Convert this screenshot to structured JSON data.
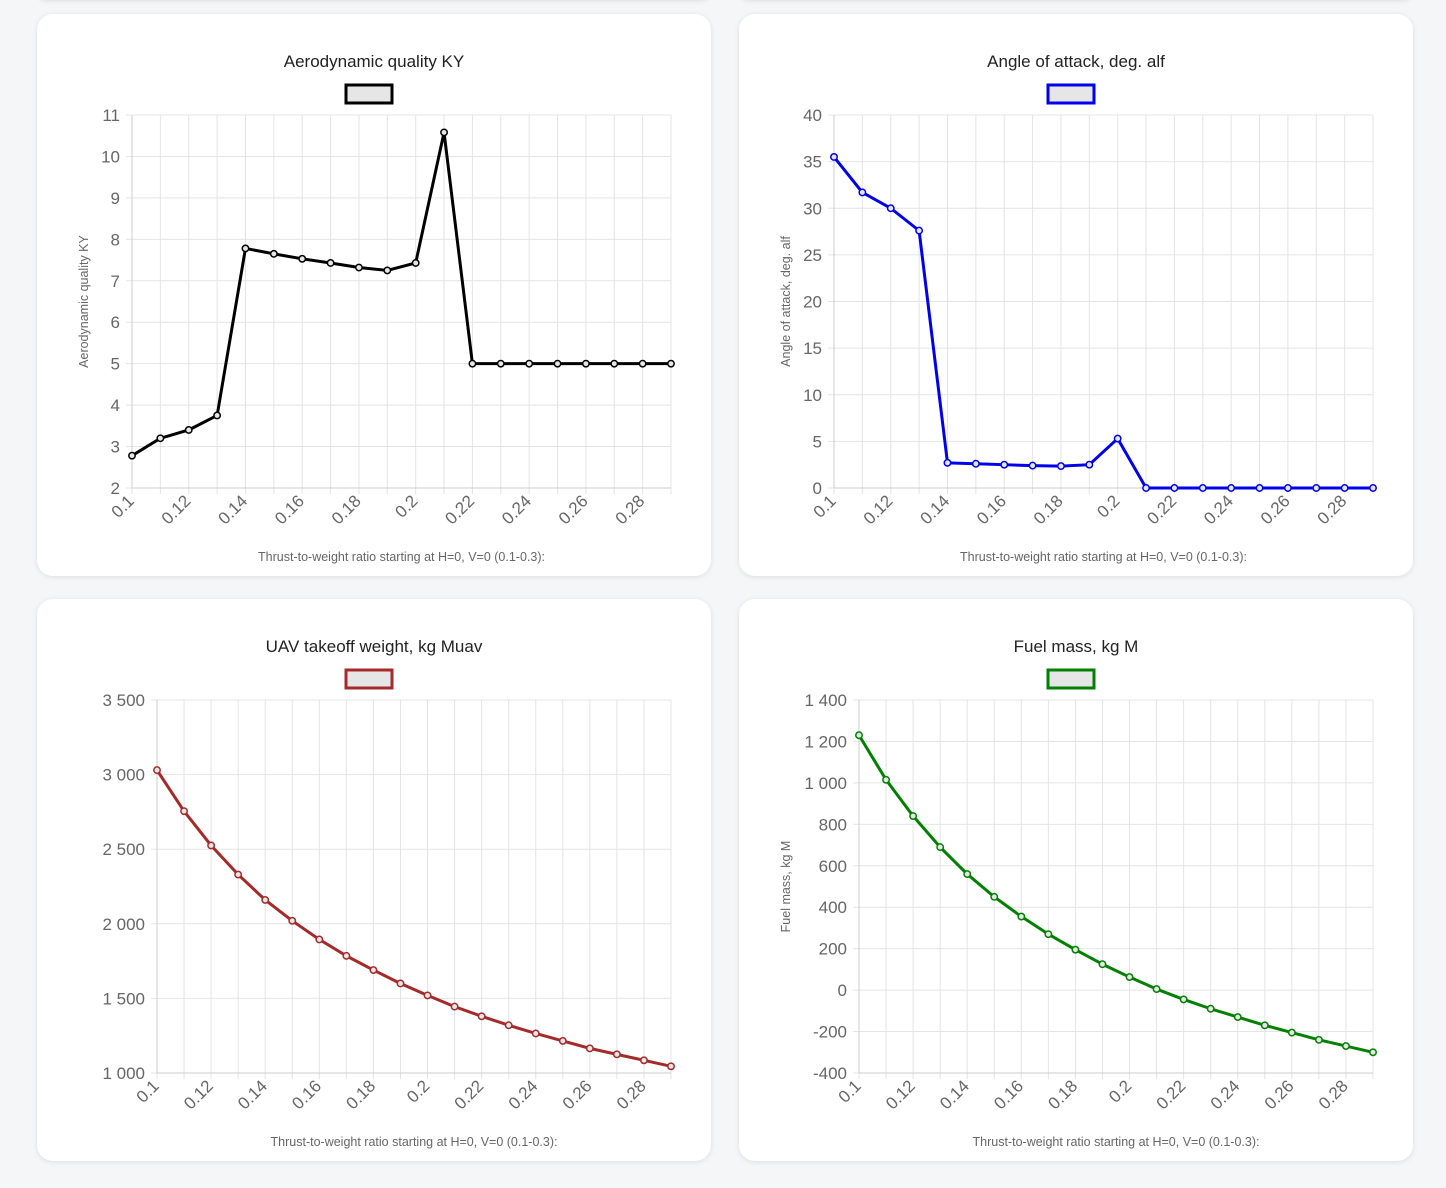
{
  "chart_data": [
    {
      "type": "line",
      "title": "Aerodynamic quality KY",
      "xlabel": "Thrust-to-weight ratio starting at H=0, V=0 (0.1-0.3):",
      "ylabel": "Aerodynamic quality KY",
      "color": "#000000",
      "ylim": [
        2,
        11
      ],
      "yticks": [
        2,
        3,
        4,
        5,
        6,
        7,
        8,
        9,
        10,
        11
      ],
      "ytick_labels": [
        "2",
        "3",
        "4",
        "5",
        "6",
        "7",
        "8",
        "9",
        "10",
        "11"
      ],
      "x": [
        0.1,
        0.11,
        0.12,
        0.13,
        0.14,
        0.15,
        0.16,
        0.17,
        0.18,
        0.19,
        0.2,
        0.21,
        0.22,
        0.23,
        0.24,
        0.25,
        0.26,
        0.27,
        0.28,
        0.29
      ],
      "xtick_labels": [
        "0.1",
        "",
        "0.12",
        "",
        "0.14",
        "",
        "0.16",
        "",
        "0.18",
        "",
        "0.2",
        "",
        "0.22",
        "",
        "0.24",
        "",
        "0.26",
        "",
        "0.28",
        ""
      ],
      "values": [
        2.78,
        3.2,
        3.4,
        3.75,
        7.78,
        7.65,
        7.53,
        7.43,
        7.32,
        7.25,
        7.43,
        10.58,
        5.0,
        5.0,
        5.0,
        5.0,
        5.0,
        5.0,
        5.0,
        5.0
      ],
      "grid": true,
      "legend": "top"
    },
    {
      "type": "line",
      "title": "Angle of attack, deg. alf",
      "xlabel": "Thrust-to-weight ratio starting at H=0, V=0 (0.1-0.3):",
      "ylabel": "Angle of attack, deg. alf",
      "color": "#0000ee",
      "ylim": [
        0,
        40
      ],
      "yticks": [
        0,
        5,
        10,
        15,
        20,
        25,
        30,
        35,
        40
      ],
      "ytick_labels": [
        "0",
        "5",
        "10",
        "15",
        "20",
        "25",
        "30",
        "35",
        "40"
      ],
      "x": [
        0.1,
        0.11,
        0.12,
        0.13,
        0.14,
        0.15,
        0.16,
        0.17,
        0.18,
        0.19,
        0.2,
        0.21,
        0.22,
        0.23,
        0.24,
        0.25,
        0.26,
        0.27,
        0.28,
        0.29
      ],
      "xtick_labels": [
        "0.1",
        "",
        "0.12",
        "",
        "0.14",
        "",
        "0.16",
        "",
        "0.18",
        "",
        "0.2",
        "",
        "0.22",
        "",
        "0.24",
        "",
        "0.26",
        "",
        "0.28",
        ""
      ],
      "values": [
        35.5,
        31.7,
        30.0,
        27.6,
        2.7,
        2.6,
        2.5,
        2.4,
        2.35,
        2.5,
        5.3,
        0.0,
        0.0,
        0.0,
        0.0,
        0.0,
        0.0,
        0.0,
        0.0,
        0.0
      ],
      "grid": true,
      "legend": "top"
    },
    {
      "type": "line",
      "title": "UAV takeoff weight, kg Muav",
      "xlabel": "Thrust-to-weight ratio starting at H=0, V=0 (0.1-0.3):",
      "ylabel": "",
      "color": "#a52a2a",
      "ylim": [
        1000,
        3500
      ],
      "yticks": [
        1000,
        1500,
        2000,
        2500,
        3000,
        3500
      ],
      "ytick_labels": [
        "1 000",
        "1 500",
        "2 000",
        "2 500",
        "3 000",
        "3 500"
      ],
      "x": [
        0.1,
        0.11,
        0.12,
        0.13,
        0.14,
        0.15,
        0.16,
        0.17,
        0.18,
        0.19,
        0.2,
        0.21,
        0.22,
        0.23,
        0.24,
        0.25,
        0.26,
        0.27,
        0.28,
        0.29
      ],
      "xtick_labels": [
        "0.1",
        "",
        "0.12",
        "",
        "0.14",
        "",
        "0.16",
        "",
        "0.18",
        "",
        "0.2",
        "",
        "0.22",
        "",
        "0.24",
        "",
        "0.26",
        "",
        "0.28",
        ""
      ],
      "values": [
        3030,
        2755,
        2525,
        2330,
        2160,
        2020,
        1895,
        1785,
        1690,
        1600,
        1520,
        1445,
        1380,
        1320,
        1265,
        1215,
        1165,
        1125,
        1085,
        1045
      ],
      "grid": true,
      "legend": "top"
    },
    {
      "type": "line",
      "title": "Fuel mass, kg M",
      "xlabel": "Thrust-to-weight ratio starting at H=0, V=0 (0.1-0.3):",
      "ylabel": "Fuel mass, kg M",
      "color": "#008000",
      "ylim": [
        -400,
        1400
      ],
      "yticks": [
        -400,
        -200,
        0,
        200,
        400,
        600,
        800,
        1000,
        1200,
        1400
      ],
      "ytick_labels": [
        "-400",
        "-200",
        "0",
        "200",
        "400",
        "600",
        "800",
        "1 000",
        "1 200",
        "1 400"
      ],
      "x": [
        0.1,
        0.11,
        0.12,
        0.13,
        0.14,
        0.15,
        0.16,
        0.17,
        0.18,
        0.19,
        0.2,
        0.21,
        0.22,
        0.23,
        0.24,
        0.25,
        0.26,
        0.27,
        0.28,
        0.29
      ],
      "xtick_labels": [
        "0.1",
        "",
        "0.12",
        "",
        "0.14",
        "",
        "0.16",
        "",
        "0.18",
        "",
        "0.2",
        "",
        "0.22",
        "",
        "0.24",
        "",
        "0.26",
        "",
        "0.28",
        ""
      ],
      "values": [
        1230,
        1015,
        840,
        690,
        560,
        450,
        355,
        270,
        195,
        125,
        63,
        5,
        -45,
        -90,
        -130,
        -170,
        -205,
        -240,
        -270,
        -300
      ],
      "grid": true,
      "legend": "top"
    }
  ]
}
